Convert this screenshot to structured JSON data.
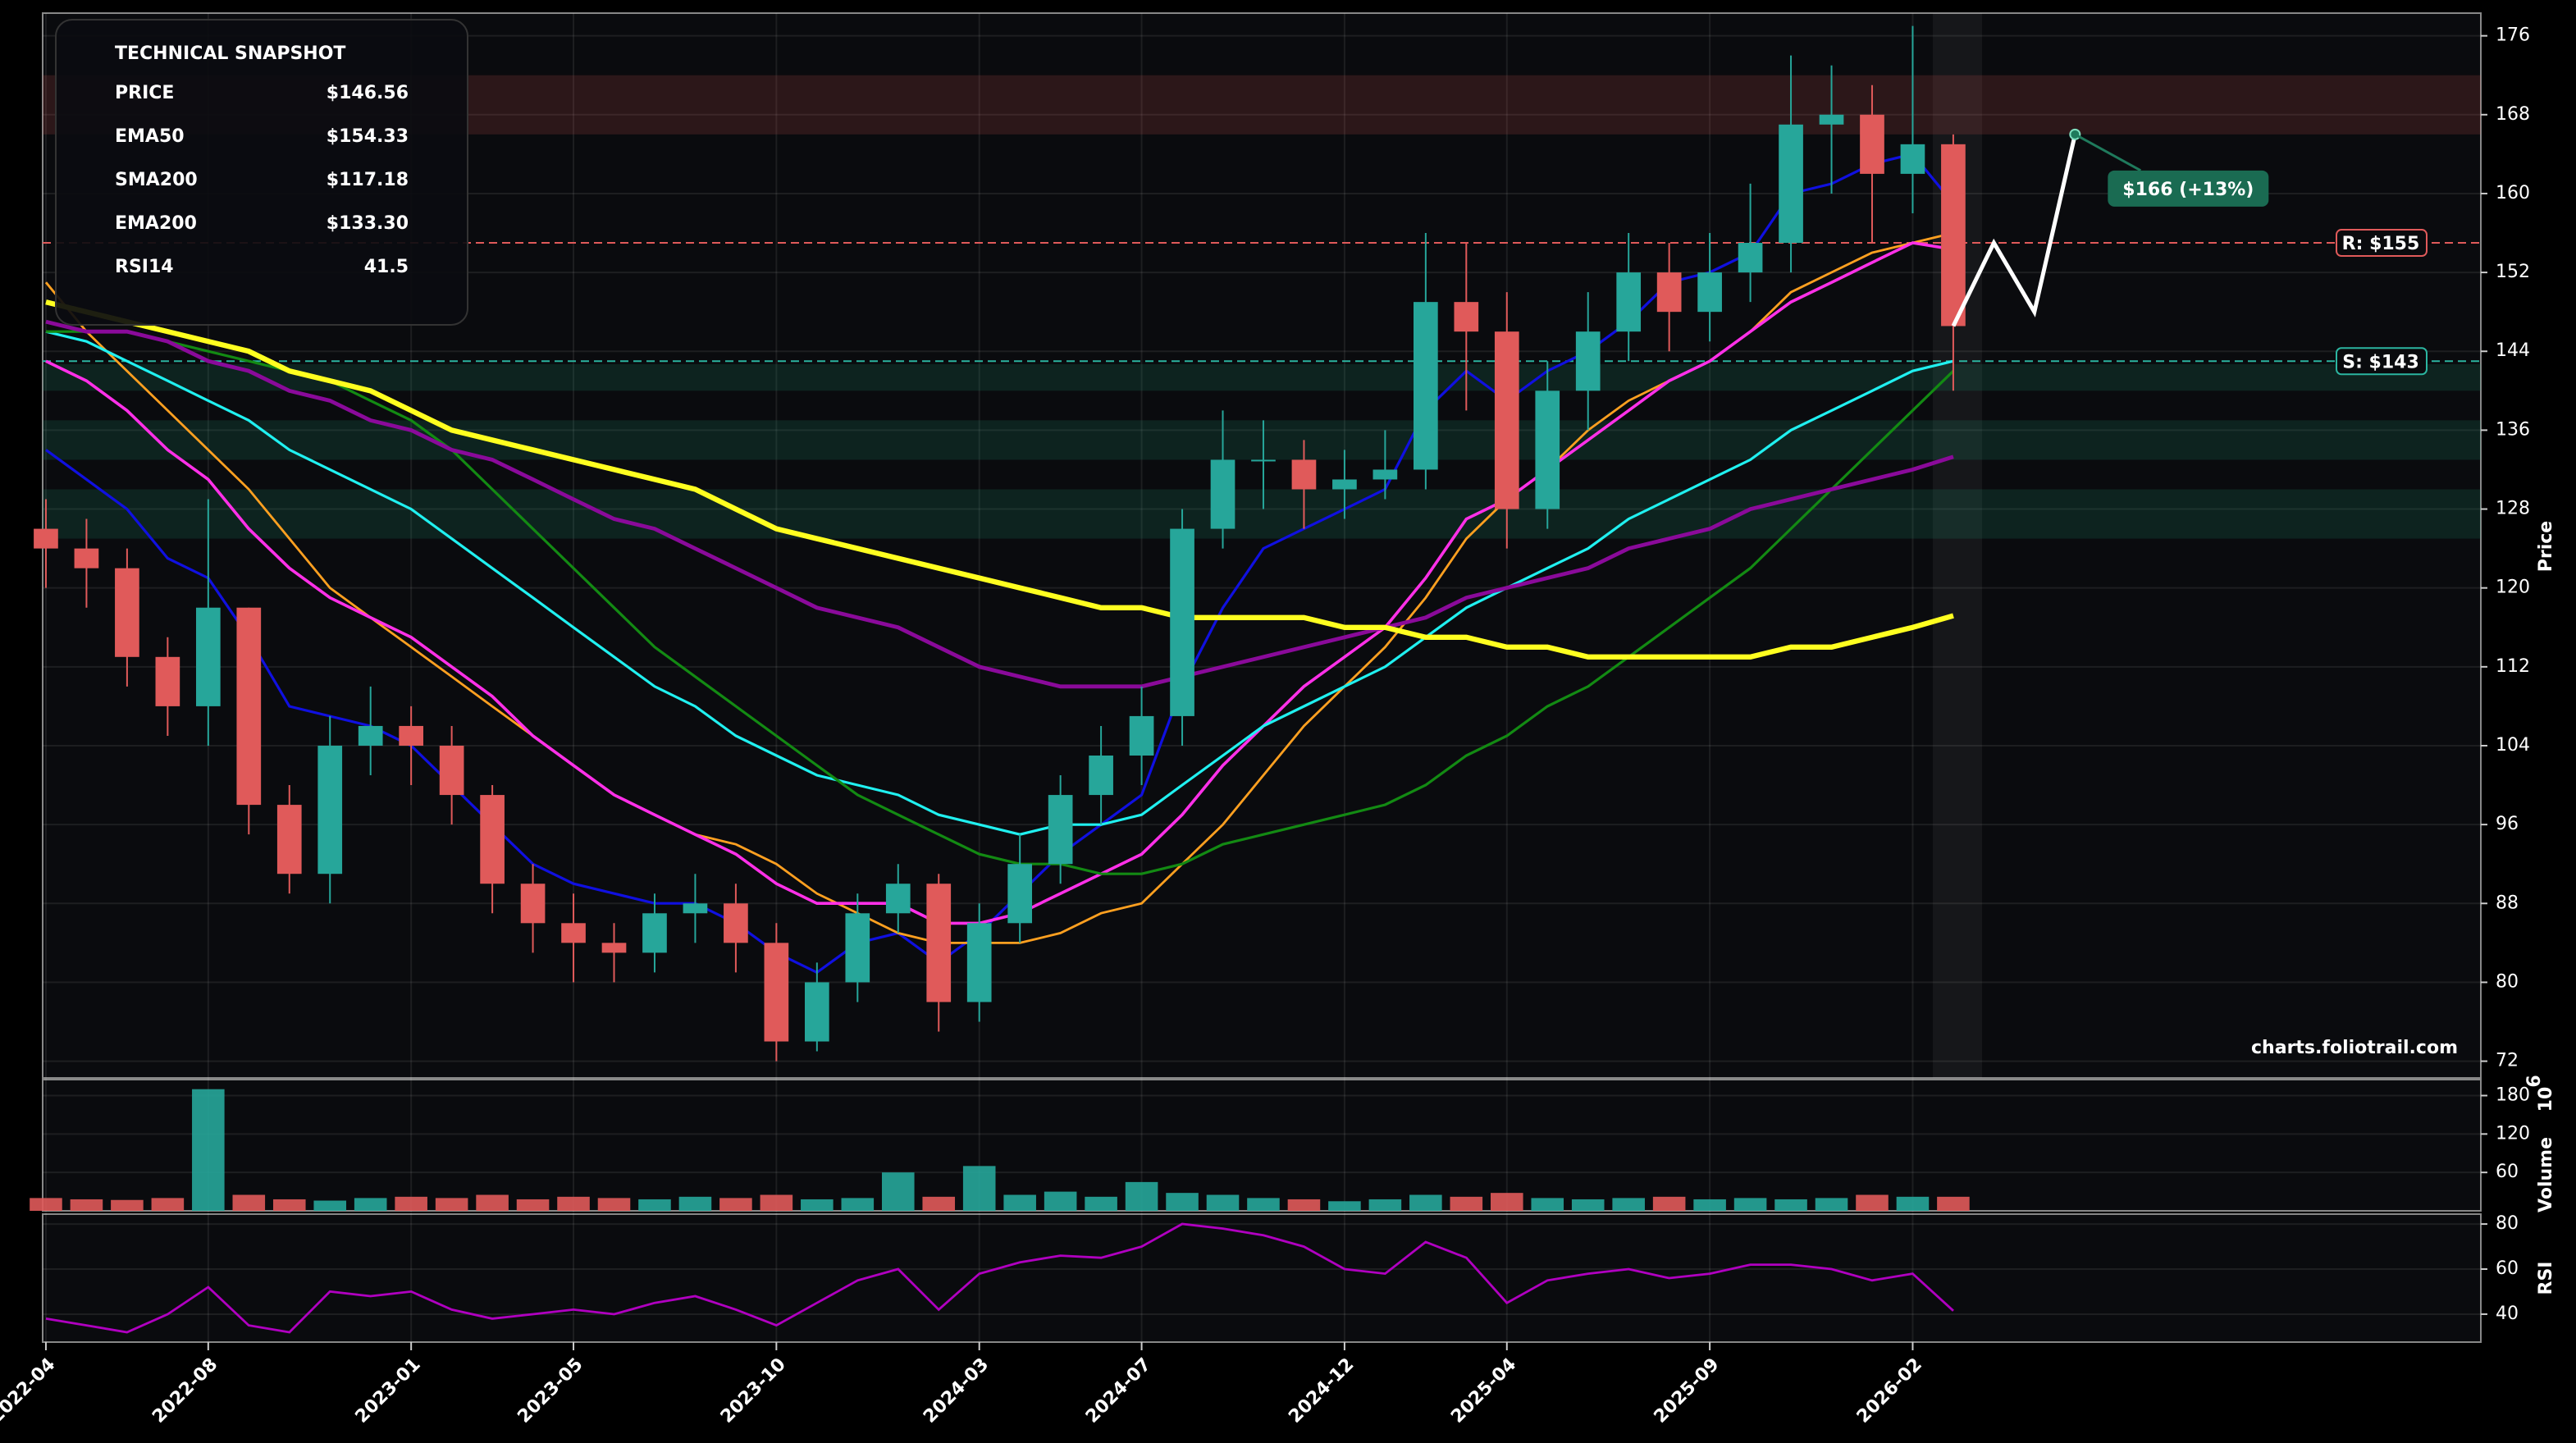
{
  "chart_data": {
    "type": "candlestick",
    "x": [
      "2022-04",
      "2022-05",
      "2022-06",
      "2022-07",
      "2022-08",
      "2022-09",
      "2022-10",
      "2022-11",
      "2022-12",
      "2023-01",
      "2023-02",
      "2023-03",
      "2023-04",
      "2023-05",
      "2023-06",
      "2023-07",
      "2023-08",
      "2023-09",
      "2023-10",
      "2023-11",
      "2023-12",
      "2024-01",
      "2024-02",
      "2024-03",
      "2024-04",
      "2024-05",
      "2024-06",
      "2024-07",
      "2024-08",
      "2024-09",
      "2024-10",
      "2024-11",
      "2024-12",
      "2025-01",
      "2025-02",
      "2025-03",
      "2025-04",
      "2025-05",
      "2025-06",
      "2025-07",
      "2025-08",
      "2025-09",
      "2025-10",
      "2025-11",
      "2025-12",
      "2026-01",
      "2026-02",
      "2026-03"
    ],
    "open": [
      126,
      124,
      122,
      113,
      108,
      118,
      98,
      91,
      104,
      106,
      104,
      99,
      90,
      86,
      84,
      83,
      87,
      88,
      84,
      74,
      80,
      87,
      90,
      78,
      86,
      92,
      99,
      103,
      107,
      126,
      133,
      133,
      130,
      131,
      132,
      149,
      146,
      128,
      140,
      146,
      152,
      148,
      152,
      155,
      167,
      168,
      162,
      165
    ],
    "high": [
      129,
      127,
      124,
      115,
      129,
      118,
      100,
      107,
      110,
      108,
      106,
      100,
      92,
      89,
      86,
      89,
      91,
      90,
      86,
      82,
      89,
      92,
      91,
      88,
      95,
      101,
      106,
      110,
      128,
      138,
      137,
      135,
      134,
      136,
      156,
      155,
      150,
      143,
      150,
      156,
      155,
      156,
      161,
      174,
      173,
      171,
      177,
      166
    ],
    "low": [
      120,
      118,
      110,
      105,
      104,
      95,
      89,
      88,
      101,
      100,
      96,
      87,
      83,
      80,
      80,
      81,
      84,
      81,
      72,
      73,
      78,
      85,
      75,
      76,
      84,
      90,
      96,
      100,
      104,
      124,
      128,
      126,
      127,
      129,
      130,
      138,
      124,
      126,
      136,
      143,
      144,
      145,
      149,
      152,
      160,
      155,
      158,
      140
    ],
    "close": [
      124,
      122,
      113,
      108,
      118,
      98,
      91,
      104,
      106,
      104,
      99,
      90,
      86,
      84,
      83,
      87,
      88,
      84,
      74,
      80,
      87,
      90,
      78,
      86,
      92,
      99,
      103,
      107,
      126,
      133,
      133,
      130,
      131,
      132,
      149,
      146,
      128,
      140,
      146,
      152,
      148,
      152,
      155,
      167,
      168,
      162,
      165,
      146.56
    ],
    "up_color": "#26a69a",
    "down_color": "#e05a5a",
    "lines": [
      {
        "color": "#1010e0",
        "width": 1.6,
        "values": [
          134,
          131,
          128,
          123,
          121,
          115,
          108,
          107,
          106,
          104,
          100,
          96,
          92,
          90,
          89,
          88,
          88,
          86,
          83,
          81,
          84,
          85,
          82,
          85,
          89,
          93,
          96,
          99,
          110,
          118,
          124,
          126,
          128,
          130,
          138,
          142,
          139,
          142,
          144,
          147,
          151,
          152,
          154,
          160,
          161,
          163,
          164,
          159
        ]
      },
      {
        "color": "#ffa020",
        "width": 1.4,
        "values": [
          151,
          146,
          142,
          138,
          134,
          130,
          125,
          120,
          117,
          114,
          111,
          108,
          105,
          102,
          99,
          97,
          95,
          94,
          92,
          89,
          87,
          85,
          84,
          84,
          84,
          85,
          87,
          88,
          92,
          96,
          101,
          106,
          110,
          114,
          119,
          125,
          129,
          132,
          136,
          139,
          141,
          143,
          146,
          150,
          152,
          154,
          155,
          156
        ]
      },
      {
        "color": "#ff30e8",
        "width": 1.8,
        "values": [
          143,
          141,
          138,
          134,
          131,
          126,
          122,
          119,
          117,
          115,
          112,
          109,
          105,
          102,
          99,
          97,
          95,
          93,
          90,
          88,
          88,
          88,
          86,
          86,
          87,
          89,
          91,
          93,
          97,
          102,
          106,
          110,
          113,
          116,
          121,
          127,
          129,
          132,
          135,
          138,
          141,
          143,
          146,
          149,
          151,
          153,
          155,
          154.33
        ]
      },
      {
        "color": "#20f0f0",
        "width": 1.6,
        "values": [
          146,
          145,
          143,
          141,
          139,
          137,
          134,
          132,
          130,
          128,
          125,
          122,
          119,
          116,
          113,
          110,
          108,
          105,
          103,
          101,
          100,
          99,
          97,
          96,
          95,
          96,
          96,
          97,
          100,
          103,
          106,
          108,
          110,
          112,
          115,
          118,
          120,
          122,
          124,
          127,
          129,
          131,
          133,
          136,
          138,
          140,
          142,
          143
        ]
      },
      {
        "color": "#138a13",
        "width": 1.6,
        "values": [
          146,
          146,
          146,
          145,
          144,
          143,
          142,
          141,
          139,
          137,
          134,
          130,
          126,
          122,
          118,
          114,
          111,
          108,
          105,
          102,
          99,
          97,
          95,
          93,
          92,
          92,
          91,
          91,
          92,
          94,
          95,
          96,
          97,
          98,
          100,
          103,
          105,
          108,
          110,
          113,
          116,
          119,
          122,
          126,
          130,
          134,
          138,
          142
        ]
      },
      {
        "color": "#8a0a9a",
        "width": 2.4,
        "values": [
          147,
          146,
          146,
          145,
          143,
          142,
          140,
          139,
          137,
          136,
          134,
          133,
          131,
          129,
          127,
          126,
          124,
          122,
          120,
          118,
          117,
          116,
          114,
          112,
          111,
          110,
          110,
          110,
          111,
          112,
          113,
          114,
          115,
          116,
          117,
          119,
          120,
          121,
          122,
          124,
          125,
          126,
          128,
          129,
          130,
          131,
          132,
          133.3
        ]
      },
      {
        "color": "#ffff20",
        "width": 3.2,
        "values": [
          149,
          148,
          147,
          146,
          145,
          144,
          142,
          141,
          140,
          138,
          136,
          135,
          134,
          133,
          132,
          131,
          130,
          128,
          126,
          125,
          124,
          123,
          122,
          121,
          120,
          119,
          118,
          118,
          117,
          117,
          117,
          117,
          116,
          116,
          115,
          115,
          114,
          114,
          113,
          113,
          113,
          113,
          113,
          114,
          114,
          115,
          116,
          117.18
        ]
      }
    ],
    "zones": [
      {
        "range": [
          166,
          172
        ],
        "color": "#e05a5a"
      },
      {
        "range": [
          140,
          142.7
        ],
        "color": "#1fa37f"
      },
      {
        "range": [
          133,
          137
        ],
        "color": "#1fa37f"
      },
      {
        "range": [
          125,
          130
        ],
        "color": "#1fa37f"
      }
    ],
    "levels": [
      {
        "value": 155,
        "label": "R: $155",
        "color": "#e05a5a"
      },
      {
        "value": 143,
        "label": "S: $143",
        "color": "#2bb5a0"
      }
    ],
    "projection": {
      "x": [
        "2026-03",
        "2026-04",
        "2026-05",
        "2026-06"
      ],
      "values": [
        146.56,
        155,
        148,
        166
      ],
      "label": "$166 (+13%)"
    },
    "xlim": [
      "2022-04",
      "2027-04"
    ],
    "xticks": [
      "2022-04",
      "2022-08",
      "2023-01",
      "2023-05",
      "2023-10",
      "2024-03",
      "2024-07",
      "2024-12",
      "2025-04",
      "2025-09",
      "2026-02"
    ],
    "ylim": [
      70.3,
      178.3
    ],
    "yticks": [
      72,
      80,
      88,
      96,
      104,
      112,
      120,
      128,
      136,
      144,
      152,
      160,
      168,
      176
    ],
    "ylabel": "Price",
    "grid": true,
    "volume": {
      "values": [
        20,
        18,
        17,
        20,
        190,
        25,
        18,
        16,
        20,
        22,
        20,
        25,
        18,
        22,
        20,
        18,
        22,
        20,
        25,
        18,
        20,
        60,
        22,
        70,
        25,
        30,
        22,
        45,
        28,
        25,
        20,
        18,
        15,
        18,
        25,
        22,
        28,
        20,
        18,
        20,
        22,
        18,
        20,
        18,
        20,
        25,
        22,
        22
      ],
      "ylim": [
        0,
        205
      ],
      "yticks": [
        60,
        120,
        180
      ],
      "ylabel": "Volume",
      "scale_base": "10",
      "scale_power": "6"
    },
    "rsi": {
      "values": [
        38,
        35,
        32,
        40,
        52,
        35,
        32,
        50,
        48,
        50,
        42,
        38,
        40,
        42,
        40,
        45,
        48,
        42,
        35,
        45,
        55,
        60,
        42,
        58,
        63,
        66,
        65,
        70,
        80,
        78,
        75,
        70,
        60,
        58,
        72,
        65,
        45,
        55,
        58,
        60,
        56,
        58,
        62,
        62,
        60,
        55,
        58,
        41.5
      ],
      "color": "#b000c0",
      "ylim": [
        27.6,
        84.4
      ],
      "yticks": [
        40,
        60,
        80
      ],
      "ylabel": "RSI"
    },
    "snapshot": {
      "title": "TECHNICAL SNAPSHOT",
      "rows": [
        {
          "label": "PRICE",
          "value": "$146.56",
          "color": "#ffffff"
        },
        {
          "label": "EMA50",
          "value": "$154.33",
          "color": "#ff4fe0"
        },
        {
          "label": "SMA200",
          "value": "$117.18",
          "color": "#ffff30"
        },
        {
          "label": "EMA200",
          "value": "$133.30",
          "color": "#c020d0"
        },
        {
          "label": "RSI14",
          "value": "41.5",
          "color": "#c020d0"
        }
      ]
    },
    "watermark": "charts.foliotrail.com"
  }
}
